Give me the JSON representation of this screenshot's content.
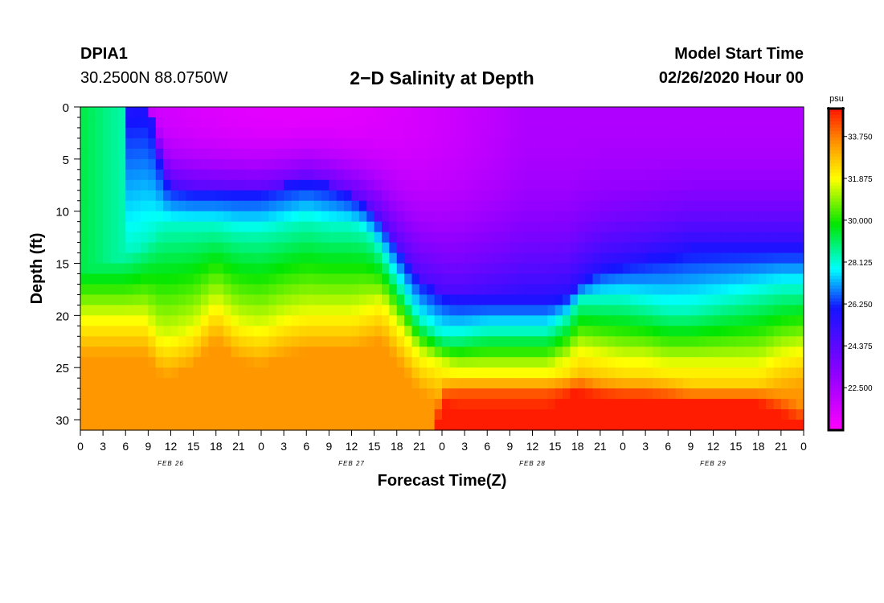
{
  "header": {
    "station": "DPIA1",
    "coords": "30.2500N 88.0750W",
    "title": "2−D Salinity at Depth",
    "model_start_label": "Model Start Time",
    "model_start_value": "02/26/2020 Hour 00"
  },
  "colorbar": {
    "unit": "psu",
    "ticks": [
      "33.750",
      "31.875",
      "30.000",
      "28.125",
      "26.250",
      "24.375",
      "22.500"
    ],
    "tick_values": [
      33.75,
      31.875,
      30.0,
      28.125,
      26.25,
      24.375,
      22.5
    ],
    "range": [
      20.6,
      35.0
    ]
  },
  "chart_data": {
    "type": "heatmap",
    "title": "2−D Salinity at Depth",
    "xlabel": "Forecast Time(Z)",
    "ylabel": "Depth (ft)",
    "x_ticks": [
      "0",
      "3",
      "6",
      "9",
      "12",
      "15",
      "18",
      "21",
      "0",
      "3",
      "6",
      "9",
      "12",
      "15",
      "18",
      "21",
      "0",
      "3",
      "6",
      "9",
      "12",
      "15",
      "18",
      "21",
      "0",
      "3",
      "6",
      "9",
      "12",
      "15",
      "18",
      "21",
      "0"
    ],
    "x_hours_range": [
      0,
      96
    ],
    "date_labels": [
      {
        "label": "FEB 26",
        "hour": 12
      },
      {
        "label": "FEB 27",
        "hour": 36
      },
      {
        "label": "FEB 28",
        "hour": 60
      },
      {
        "label": "FEB 29",
        "hour": 84
      }
    ],
    "y_ticks": [
      "0",
      "5",
      "10",
      "15",
      "20",
      "25",
      "30"
    ],
    "y_tick_values": [
      0,
      5,
      10,
      15,
      20,
      25,
      30
    ],
    "ylim": [
      0,
      31
    ],
    "y_inverted": true,
    "value_unit": "psu",
    "interfaces": {
      "hours": [
        0,
        6,
        9,
        10,
        11,
        12,
        15,
        18,
        21,
        24,
        27,
        30,
        33,
        36,
        38,
        40,
        43,
        45,
        48,
        50,
        54,
        57,
        60,
        62,
        65,
        66,
        69,
        72,
        75,
        78,
        81,
        84,
        87,
        90,
        93,
        96
      ],
      "fresh_bottom_ft": [
        0,
        0,
        0,
        3,
        6.5,
        7.5,
        8,
        8,
        8,
        8,
        7.5,
        7,
        7.5,
        8.5,
        9.5,
        11,
        14.5,
        16.5,
        18,
        18.5,
        18.5,
        18.5,
        18.5,
        18.5,
        18,
        17,
        15.5,
        15,
        14.5,
        14,
        13.5,
        13.5,
        13.5,
        13.5,
        13.5,
        13.5
      ],
      "halocline_mid_ft": [
        14,
        14,
        13,
        12,
        11.5,
        11.5,
        11.5,
        11.5,
        12,
        12,
        11.5,
        11,
        11.5,
        11.5,
        12,
        14,
        18,
        20.5,
        22,
        22,
        21.5,
        21.5,
        21.5,
        21.5,
        20,
        18.5,
        18.5,
        18.5,
        19,
        19.5,
        19.5,
        19,
        18.5,
        18,
        17.5,
        17.5
      ],
      "yellow_top_ft": [
        20,
        20,
        20,
        21.5,
        22,
        22,
        21,
        18.5,
        20.5,
        21,
        20,
        19.5,
        19.5,
        19.5,
        19,
        18.5,
        21.5,
        23.5,
        24.5,
        25,
        25,
        25,
        25,
        25,
        24,
        23,
        23.5,
        24,
        24,
        24.5,
        24.5,
        24.5,
        24.5,
        24.5,
        23.5,
        23
      ],
      "deep_core_ft": [
        40,
        40,
        40,
        40,
        40,
        40,
        40,
        40,
        40,
        40,
        40,
        40,
        40,
        40,
        40,
        40,
        40,
        40,
        27.5,
        27,
        27,
        27,
        27,
        27,
        27,
        27,
        27.5,
        27.5,
        27.5,
        27.5,
        28,
        28,
        28,
        28,
        29,
        30
      ]
    }
  }
}
